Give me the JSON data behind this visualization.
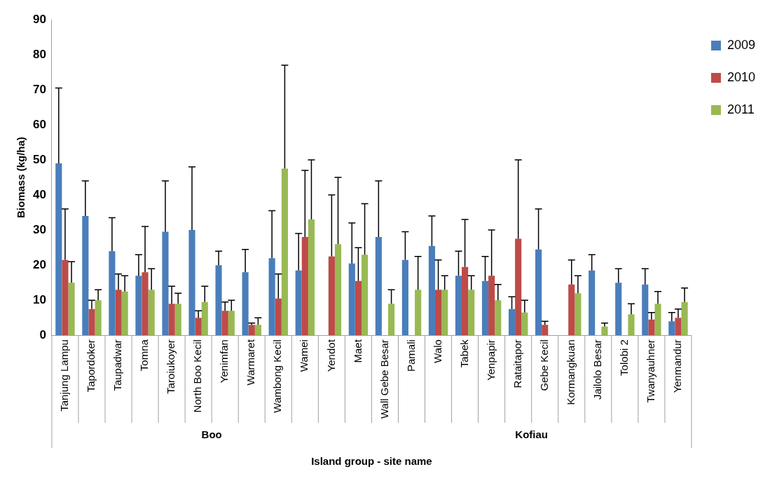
{
  "chart_data": {
    "type": "bar",
    "xlabel": "Island group - site name",
    "ylabel": "Biomass (kg/ha)",
    "categories": [
      "Tanjung Lampu",
      "Tapordoker",
      "Taupadwar",
      "Tomna",
      "Taroiukoyer",
      "North Boo Kecil",
      "Yenimfan",
      "Warmaret",
      "Wambong Kecil",
      "Wamei",
      "Yendot",
      "Maet",
      "Wall Gebe Besar",
      "Pamali",
      "Walo",
      "Tabek",
      "Yenpapir",
      "Rataitapor",
      "Gebe Kecil",
      "Kormangkuan",
      "Jailolo Besar",
      "Tolobi 2",
      "Twanyauhner",
      "Yenmandur"
    ],
    "series": [
      {
        "name": "2009",
        "color": "#4a7ebb",
        "values": [
          49,
          34,
          24,
          17,
          29.5,
          30,
          20,
          18,
          22,
          18.5,
          null,
          20.5,
          28,
          21.5,
          25.5,
          17,
          15.5,
          7.5,
          24.5,
          null,
          18.5,
          15,
          14.5,
          4
        ],
        "errors": [
          [
            49,
            70.5
          ],
          [
            34,
            44
          ],
          [
            24,
            33.5
          ],
          [
            17,
            23
          ],
          [
            29.5,
            44
          ],
          [
            30,
            48
          ],
          [
            20,
            24
          ],
          [
            18,
            24.5
          ],
          [
            22,
            35.5
          ],
          [
            18.5,
            29
          ],
          null,
          [
            20.5,
            32
          ],
          [
            28,
            44
          ],
          [
            21.5,
            29.5
          ],
          [
            25.5,
            34
          ],
          [
            17,
            24
          ],
          [
            15.5,
            22.5
          ],
          [
            7.5,
            11
          ],
          [
            24.5,
            36
          ],
          null,
          [
            18.5,
            23
          ],
          [
            15,
            19
          ],
          [
            14.5,
            19
          ],
          [
            4,
            6.5
          ]
        ]
      },
      {
        "name": "2010",
        "color": "#be4b48",
        "values": [
          21.5,
          7.5,
          13,
          18,
          9,
          5,
          7,
          3,
          10.5,
          28,
          22.5,
          15.5,
          null,
          null,
          13,
          19.5,
          17,
          27.5,
          3,
          14.5,
          null,
          null,
          4.5,
          5
        ],
        "errors": [
          [
            21.5,
            36
          ],
          [
            7.5,
            10
          ],
          [
            13,
            17.5
          ],
          [
            18,
            31
          ],
          [
            9,
            14
          ],
          [
            5,
            7
          ],
          [
            7,
            9.5
          ],
          [
            3,
            3.5
          ],
          [
            10.5,
            17.5
          ],
          [
            28,
            47
          ],
          [
            22.5,
            40
          ],
          [
            15.5,
            25
          ],
          null,
          null,
          [
            13,
            21.5
          ],
          [
            19.5,
            33
          ],
          [
            17,
            30
          ],
          [
            27.5,
            50
          ],
          [
            3,
            4
          ],
          [
            14.5,
            21.5
          ],
          null,
          null,
          [
            4.5,
            6.5
          ],
          [
            5,
            7.5
          ]
        ]
      },
      {
        "name": "2011",
        "color": "#98b954",
        "values": [
          15,
          10,
          12.5,
          13,
          9,
          9.5,
          7,
          3,
          47.5,
          33,
          26,
          23,
          9,
          13,
          13,
          13,
          10,
          6.5,
          null,
          12,
          2.5,
          6,
          9,
          9.5
        ],
        "errors": [
          [
            15,
            21
          ],
          [
            10,
            13
          ],
          [
            12.5,
            17
          ],
          [
            13,
            19
          ],
          [
            9,
            12
          ],
          [
            9.5,
            14
          ],
          [
            7,
            10
          ],
          [
            3,
            5
          ],
          [
            47.5,
            77
          ],
          [
            33,
            50
          ],
          [
            26,
            45
          ],
          [
            23,
            37.5
          ],
          [
            9,
            13
          ],
          [
            13,
            22.5
          ],
          [
            13,
            17
          ],
          [
            13,
            17
          ],
          [
            10,
            14.5
          ],
          [
            6.5,
            10
          ],
          null,
          [
            12,
            17
          ],
          [
            2.5,
            3.5
          ],
          [
            6,
            9
          ],
          [
            9,
            12.5
          ],
          [
            9.5,
            13.5
          ]
        ]
      }
    ],
    "ylim": [
      0,
      90
    ],
    "yticks": [
      0,
      10,
      20,
      30,
      40,
      50,
      60,
      70,
      80,
      90
    ],
    "legend": "top right",
    "annotations": [
      "Boo",
      "Kofiau"
    ]
  }
}
